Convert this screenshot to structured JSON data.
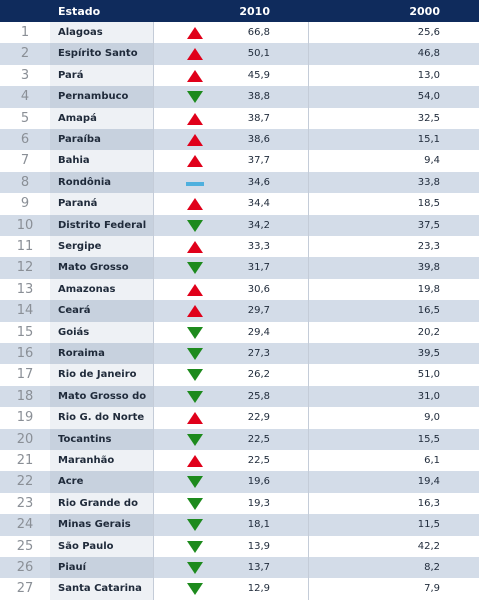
{
  "header": {
    "estado": "Estado",
    "y2010": "2010",
    "y2000": "2000"
  },
  "colors": {
    "up": "#e0001a",
    "down": "#1d8a1d",
    "same": "#4fb0de",
    "header": "#0f2b5c"
  },
  "chart_data": {
    "type": "table",
    "columns": [
      "",
      "Estado",
      "",
      "2010",
      "2000"
    ],
    "rows": [
      {
        "rank": "1",
        "estado": "Alagoas",
        "trend": "up",
        "v2010": "66,8",
        "v2000": "25,6"
      },
      {
        "rank": "2",
        "estado": "Espírito Santo",
        "trend": "up",
        "v2010": "50,1",
        "v2000": "46,8"
      },
      {
        "rank": "3",
        "estado": "Pará",
        "trend": "up",
        "v2010": "45,9",
        "v2000": "13,0"
      },
      {
        "rank": "4",
        "estado": "Pernambuco",
        "trend": "down",
        "v2010": "38,8",
        "v2000": "54,0"
      },
      {
        "rank": "5",
        "estado": "Amapá",
        "trend": "up",
        "v2010": "38,7",
        "v2000": "32,5"
      },
      {
        "rank": "6",
        "estado": "Paraíba",
        "trend": "up",
        "v2010": "38,6",
        "v2000": "15,1"
      },
      {
        "rank": "7",
        "estado": "Bahia",
        "trend": "up",
        "v2010": "37,7",
        "v2000": "9,4"
      },
      {
        "rank": "8",
        "estado": "Rondônia",
        "trend": "same",
        "v2010": "34,6",
        "v2000": "33,8"
      },
      {
        "rank": "9",
        "estado": "Paraná",
        "trend": "up",
        "v2010": "34,4",
        "v2000": "18,5"
      },
      {
        "rank": "10",
        "estado": "Distrito Federal",
        "trend": "down",
        "v2010": "34,2",
        "v2000": "37,5"
      },
      {
        "rank": "11",
        "estado": "Sergipe",
        "trend": "up",
        "v2010": "33,3",
        "v2000": "23,3"
      },
      {
        "rank": "12",
        "estado": "Mato Grosso",
        "trend": "down",
        "v2010": "31,7",
        "v2000": "39,8"
      },
      {
        "rank": "13",
        "estado": "Amazonas",
        "trend": "up",
        "v2010": "30,6",
        "v2000": "19,8"
      },
      {
        "rank": "14",
        "estado": "Ceará",
        "trend": "up",
        "v2010": "29,7",
        "v2000": "16,5"
      },
      {
        "rank": "15",
        "estado": "Goiás",
        "trend": "down",
        "v2010": "29,4",
        "v2000": "20,2"
      },
      {
        "rank": "16",
        "estado": "Roraima",
        "trend": "down",
        "v2010": "27,3",
        "v2000": "39,5"
      },
      {
        "rank": "17",
        "estado": "Rio de Janeiro",
        "trend": "down",
        "v2010": "26,2",
        "v2000": "51,0"
      },
      {
        "rank": "18",
        "estado": "Mato Grosso do Sul",
        "trend": "down",
        "v2010": "25,8",
        "v2000": "31,0"
      },
      {
        "rank": "19",
        "estado": "Rio G. do Norte",
        "trend": "up",
        "v2010": "22,9",
        "v2000": "9,0"
      },
      {
        "rank": "20",
        "estado": "Tocantins",
        "trend": "down",
        "v2010": "22,5",
        "v2000": "15,5"
      },
      {
        "rank": "21",
        "estado": "Maranhão",
        "trend": "up",
        "v2010": "22,5",
        "v2000": "6,1"
      },
      {
        "rank": "22",
        "estado": "Acre",
        "trend": "down",
        "v2010": "19,6",
        "v2000": "19,4"
      },
      {
        "rank": "23",
        "estado": "Rio Grande do Sul",
        "trend": "down",
        "v2010": "19,3",
        "v2000": "16,3"
      },
      {
        "rank": "24",
        "estado": "Minas Gerais",
        "trend": "down",
        "v2010": "18,1",
        "v2000": "11,5"
      },
      {
        "rank": "25",
        "estado": "São Paulo",
        "trend": "down",
        "v2010": "13,9",
        "v2000": "42,2"
      },
      {
        "rank": "26",
        "estado": "Piauí",
        "trend": "down",
        "v2010": "13,7",
        "v2000": "8,2"
      },
      {
        "rank": "27",
        "estado": "Santa Catarina",
        "trend": "down",
        "v2010": "12,9",
        "v2000": "7,9"
      }
    ]
  }
}
